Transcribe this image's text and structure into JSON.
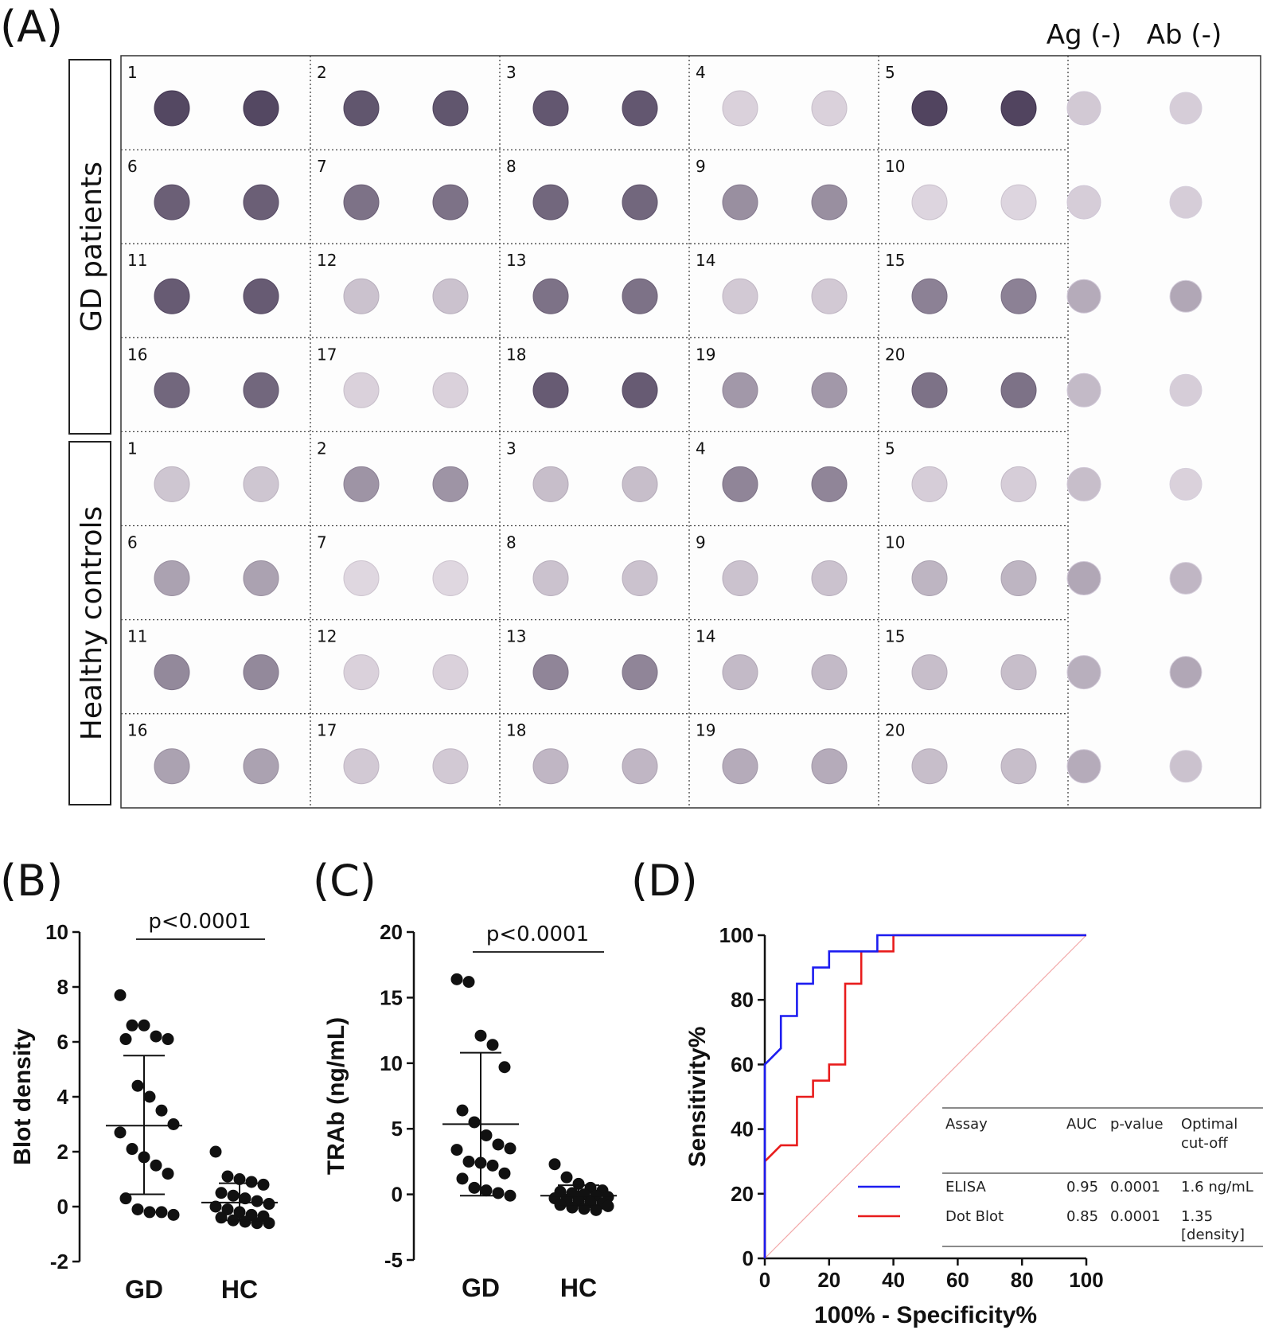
{
  "panel_a": {
    "label": "(A)",
    "header_ag": "Ag (-)",
    "header_ab": "Ab (-)",
    "group_gd": "GD patients",
    "group_hc": "Healthy controls",
    "gd_numbers": [
      "1",
      "2",
      "3",
      "4",
      "5",
      "6",
      "7",
      "8",
      "9",
      "10",
      "11",
      "12",
      "13",
      "14",
      "15",
      "16",
      "17",
      "18",
      "19",
      "20"
    ],
    "hc_numbers": [
      "1",
      "2",
      "3",
      "4",
      "5",
      "6",
      "7",
      "8",
      "9",
      "10",
      "11",
      "12",
      "13",
      "14",
      "15",
      "16",
      "17",
      "18",
      "19",
      "20"
    ],
    "gd_intensity": [
      0.82,
      0.75,
      0.74,
      0.1,
      0.84,
      0.7,
      0.6,
      0.66,
      0.45,
      0.08,
      0.72,
      0.18,
      0.6,
      0.14,
      0.52,
      0.66,
      0.1,
      0.72,
      0.4,
      0.6
    ],
    "hc_intensity": [
      0.16,
      0.42,
      0.2,
      0.5,
      0.12,
      0.35,
      0.07,
      0.18,
      0.18,
      0.25,
      0.48,
      0.1,
      0.5,
      0.22,
      0.2,
      0.35,
      0.14,
      0.24,
      0.3,
      0.2
    ],
    "ag_intensity": [
      0.14,
      0.12,
      0.3,
      0.22,
      0.2,
      0.32,
      0.28,
      0.3
    ],
    "ab_intensity": [
      0.12,
      0.12,
      0.32,
      0.12,
      0.1,
      0.24,
      0.32,
      0.18
    ]
  },
  "chart_data": [
    {
      "panel": "(B)",
      "type": "scatter",
      "ylabel": "Blot density",
      "ylim": [
        -2,
        10
      ],
      "yticks": [
        "-2",
        "0",
        "2",
        "4",
        "6",
        "8",
        "10"
      ],
      "categories": [
        "GD",
        "HC"
      ],
      "significance": "p<0.0001",
      "groups": [
        {
          "name": "GD",
          "mean": 2.95,
          "sd_low": 0.45,
          "sd_high": 5.5,
          "values": [
            7.7,
            6.6,
            6.6,
            6.2,
            6.1,
            6.1,
            4.4,
            4.0,
            3.5,
            3.0,
            2.7,
            2.1,
            1.8,
            1.5,
            1.2,
            0.3,
            -0.1,
            -0.2,
            -0.2,
            -0.3
          ]
        },
        {
          "name": "HC",
          "mean": 0.15,
          "sd_low": -0.5,
          "sd_high": 0.85,
          "values": [
            2.0,
            1.1,
            1.0,
            0.9,
            0.8,
            0.5,
            0.4,
            0.3,
            0.2,
            0.1,
            0.0,
            -0.1,
            -0.2,
            -0.3,
            -0.35,
            -0.4,
            -0.5,
            -0.55,
            -0.6,
            -0.6
          ]
        }
      ]
    },
    {
      "panel": "(C)",
      "type": "scatter",
      "ylabel": "TRAb (ng/mL)",
      "ylim": [
        -5,
        20
      ],
      "yticks": [
        "-5",
        "0",
        "5",
        "10",
        "15",
        "20"
      ],
      "categories": [
        "GD",
        "HC"
      ],
      "significance": "p<0.0001",
      "groups": [
        {
          "name": "GD",
          "mean": 5.35,
          "sd_low": -0.1,
          "sd_high": 10.8,
          "values": [
            16.4,
            16.2,
            12.1,
            11.4,
            9.7,
            6.4,
            5.5,
            4.5,
            3.8,
            3.5,
            3.4,
            2.5,
            2.4,
            2.2,
            1.6,
            1.2,
            0.5,
            0.3,
            0.1,
            -0.1
          ]
        },
        {
          "name": "HC",
          "mean": -0.1,
          "sd_low": -0.9,
          "sd_high": 0.7,
          "values": [
            2.3,
            1.3,
            0.8,
            0.5,
            0.3,
            0.2,
            0.1,
            0.0,
            -0.1,
            -0.2,
            -0.3,
            -0.4,
            -0.5,
            -0.6,
            -0.7,
            -0.8,
            -1.0,
            -1.1,
            -1.2,
            -0.9
          ]
        }
      ]
    },
    {
      "panel": "(D)",
      "type": "line",
      "xlabel": "100% - Specificity%",
      "ylabel": "Sensitivity%",
      "xlim": [
        0,
        100
      ],
      "ylim": [
        0,
        100
      ],
      "xticks": [
        "0",
        "20",
        "40",
        "60",
        "80",
        "100"
      ],
      "yticks": [
        "0",
        "20",
        "40",
        "60",
        "80",
        "100"
      ],
      "series": [
        {
          "name": "ELISA",
          "color": "#1c1cf0",
          "x": [
            0,
            0,
            5,
            5,
            10,
            10,
            15,
            15,
            20,
            20,
            35,
            35,
            100
          ],
          "y": [
            0,
            60,
            65,
            75,
            75,
            85,
            85,
            90,
            90,
            95,
            95,
            100,
            100
          ]
        },
        {
          "name": "Dot Blot",
          "color": "#e81c1c",
          "x": [
            0,
            0,
            5,
            5,
            10,
            10,
            15,
            15,
            20,
            20,
            25,
            25,
            30,
            30,
            40,
            40,
            100
          ],
          "y": [
            0,
            30,
            35,
            35,
            35,
            50,
            50,
            55,
            55,
            60,
            60,
            85,
            85,
            95,
            95,
            100,
            100
          ]
        },
        {
          "color": "#f2a7a7",
          "x": [
            0,
            100
          ],
          "y": [
            0,
            100
          ]
        }
      ],
      "table": {
        "headers": [
          "Assay",
          "AUC",
          "p-value",
          "Optimal cut-off"
        ],
        "rows": [
          [
            "ELISA",
            "0.95",
            "0.0001",
            "1.6 ng/mL"
          ],
          [
            "Dot Blot",
            "0.85",
            "0.0001",
            "1.35 [density]"
          ]
        ]
      }
    }
  ]
}
